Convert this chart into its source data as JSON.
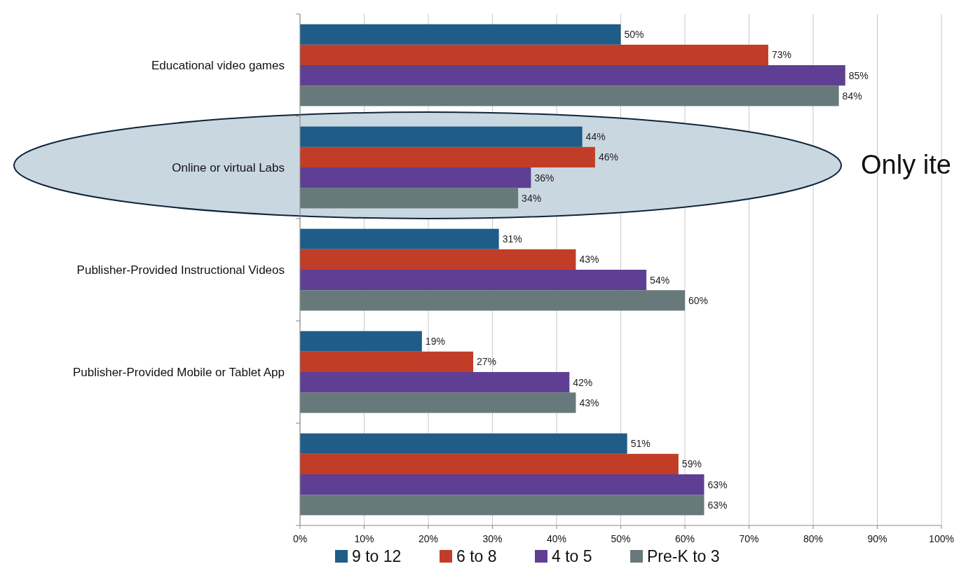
{
  "chart_data": {
    "type": "bar",
    "orientation": "horizontal",
    "categories": [
      "Educational video games",
      "Online or virtual Labs",
      "Publisher-Provided Instructional Videos",
      "Publisher-Provided Mobile or Tablet App",
      null
    ],
    "series": [
      {
        "name": "9 to 12",
        "color": "#1f5c87",
        "values": [
          50,
          44,
          31,
          19,
          51
        ],
        "value_labels": [
          "50%",
          "44%",
          "31%",
          "19%",
          "51%"
        ]
      },
      {
        "name": "6 to 8",
        "color": "#c23d27",
        "values": [
          73,
          46,
          43,
          27,
          59
        ],
        "value_labels": [
          "73%",
          "46%",
          "43%",
          "27%",
          "59%"
        ]
      },
      {
        "name": "4 to 5",
        "color": "#5f3f93",
        "values": [
          85,
          36,
          54,
          42,
          63
        ],
        "value_labels": [
          "85%",
          "36%",
          "54%",
          "42%",
          "63%"
        ]
      },
      {
        "name": "Pre-K to 3",
        "color": "#67797b",
        "values": [
          84,
          34,
          60,
          43,
          63
        ],
        "value_labels": [
          "84%",
          "34%",
          "60%",
          "43%",
          "63%"
        ]
      }
    ],
    "xlim": [
      0,
      100
    ],
    "xticks": [
      {
        "value": 0,
        "label": "0%"
      },
      {
        "value": 10,
        "label": "10%"
      },
      {
        "value": 20,
        "label": "20%"
      },
      {
        "value": 30,
        "label": "30%"
      },
      {
        "value": 40,
        "label": "40%"
      },
      {
        "value": 50,
        "label": "50%"
      },
      {
        "value": 60,
        "label": "60%"
      },
      {
        "value": 70,
        "label": "70%"
      },
      {
        "value": 80,
        "label": "80%"
      },
      {
        "value": 90,
        "label": "90%"
      },
      {
        "value": 100,
        "label": "100%"
      }
    ],
    "grid": "x",
    "legend": "bottom",
    "annotations": [
      "Only ite"
    ]
  }
}
